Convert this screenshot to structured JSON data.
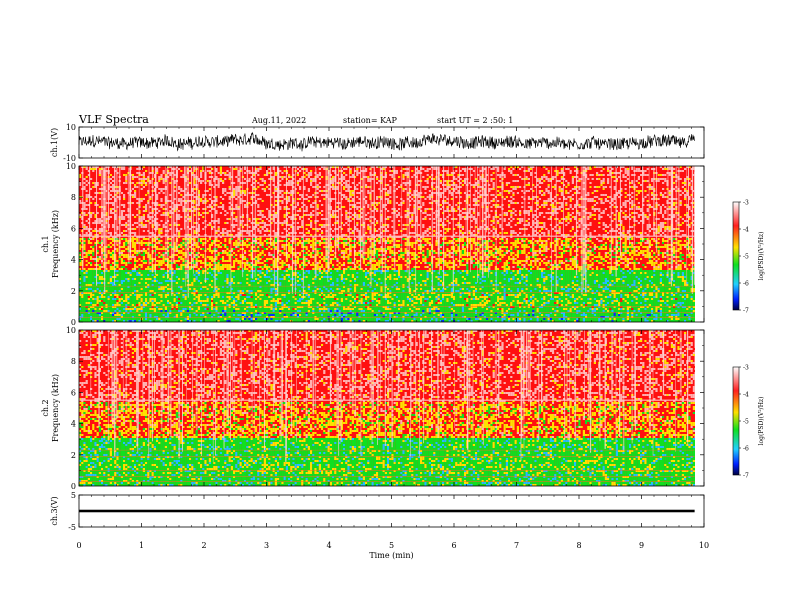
{
  "header": {
    "title": "VLF Spectra",
    "date": "Aug.11, 2022",
    "station": "station= KAP",
    "start": "start UT = 2 :50: 1"
  },
  "chart_data": [
    {
      "type": "line",
      "panel": "ch1-waveform",
      "ylabel": "ch.1(V)",
      "ylim": [
        -10,
        10
      ],
      "ytick_labels": [
        "10",
        "-10"
      ],
      "xlim": [
        0,
        10
      ],
      "data_end_min": 9.85,
      "description_values": {
        "baseline": 0,
        "amplitude_range": [
          -8,
          8
        ]
      }
    },
    {
      "type": "heatmap",
      "panel": "ch1-spectrogram",
      "ylabel": "ch.1 Frequency (kHz)",
      "ylim": [
        0,
        10
      ],
      "ytick_labels": [
        "0",
        "2",
        "4",
        "6",
        "8",
        "10"
      ],
      "xlim": [
        0,
        10
      ],
      "data_end_min": 9.85,
      "bands": [
        {
          "from_khz": 0,
          "to_khz": 0.8,
          "level": -5.0
        },
        {
          "from_khz": 0.8,
          "to_khz": 2.0,
          "level": -4.6
        },
        {
          "from_khz": 2.0,
          "to_khz": 3.4,
          "level": -4.9
        },
        {
          "from_khz": 3.4,
          "to_khz": 5.4,
          "level": -3.9
        },
        {
          "from_khz": 5.4,
          "to_khz": 10,
          "level": -3.3
        }
      ],
      "colorbar": {
        "label": "log(PSD)(V²/Hz)",
        "range": [
          -7,
          -3
        ],
        "ticks": [
          "-3",
          "-4",
          "-5",
          "-6",
          "-7"
        ]
      }
    },
    {
      "type": "heatmap",
      "panel": "ch2-spectrogram",
      "ylabel": "ch.2 Frequency (kHz)",
      "ylim": [
        0,
        10
      ],
      "ytick_labels": [
        "0",
        "2",
        "4",
        "6",
        "8",
        "10"
      ],
      "xlim": [
        0,
        10
      ],
      "data_end_min": 9.85,
      "bands": [
        {
          "from_khz": 0,
          "to_khz": 0.8,
          "level": -4.9
        },
        {
          "from_khz": 0.8,
          "to_khz": 2.0,
          "level": -4.7
        },
        {
          "from_khz": 2.0,
          "to_khz": 3.2,
          "level": -4.9
        },
        {
          "from_khz": 3.2,
          "to_khz": 5.4,
          "level": -3.9
        },
        {
          "from_khz": 5.4,
          "to_khz": 10,
          "level": -3.3
        }
      ],
      "colorbar": {
        "label": "log(PSD)(V²/Hz)",
        "range": [
          -7,
          -3
        ],
        "ticks": [
          "-3",
          "-4",
          "-5",
          "-6",
          "-7"
        ]
      }
    },
    {
      "type": "line",
      "panel": "ch3-waveform",
      "ylabel": "ch.3(V)",
      "ylim": [
        -5,
        5
      ],
      "ytick_labels": [
        "5",
        "-5"
      ],
      "xlim": [
        0,
        10
      ],
      "data_end_min": 9.85,
      "description_values": {
        "baseline": 0,
        "amplitude_range": [
          -0.4,
          0.4
        ]
      }
    }
  ],
  "xaxis": {
    "label": "Time (min)",
    "ticks": [
      "0",
      "1",
      "2",
      "3",
      "4",
      "5",
      "6",
      "7",
      "8",
      "9",
      "10"
    ]
  },
  "colors": {
    "red": "#ff1010",
    "yellow": "#ffe000",
    "green": "#10e020",
    "blue": "#0030ff",
    "navy": "#000040"
  }
}
